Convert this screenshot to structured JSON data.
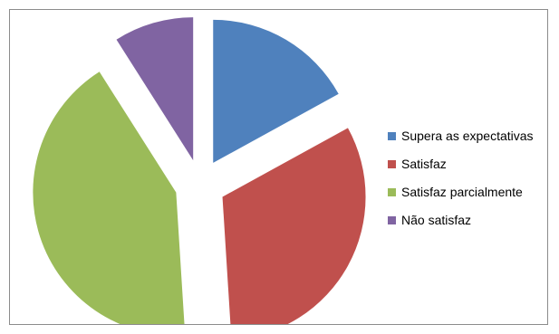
{
  "chart_data": {
    "type": "pie",
    "exploded": true,
    "title": "",
    "legend_position": "right",
    "categories": [
      "Supera as expectativas",
      "Satisfaz",
      "Satisfaz parcialmente",
      "Não satisfaz"
    ],
    "values": [
      17,
      32,
      42,
      9
    ],
    "colors": [
      "#4f81bd",
      "#c0504d",
      "#9bbb59",
      "#8064a2"
    ]
  }
}
